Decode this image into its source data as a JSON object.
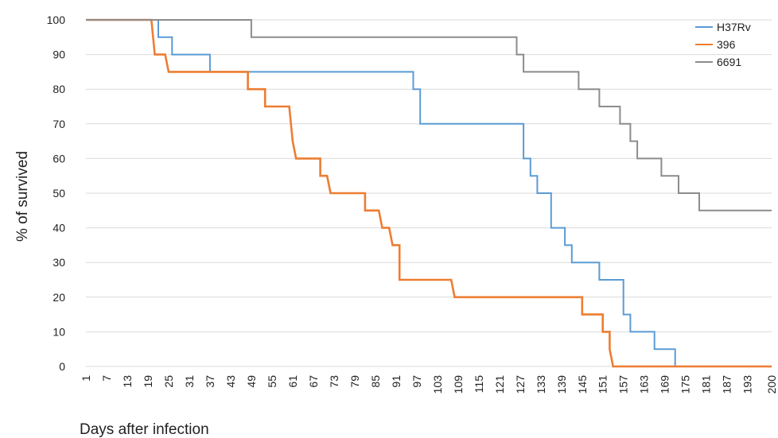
{
  "chart_data": {
    "type": "line",
    "xlabel": "Days after infection",
    "ylabel": "% of survived",
    "xlim": [
      1,
      200
    ],
    "ylim": [
      0,
      100
    ],
    "x_ticks": [
      1,
      7,
      13,
      19,
      25,
      31,
      37,
      43,
      49,
      55,
      61,
      67,
      73,
      79,
      85,
      91,
      97,
      103,
      109,
      115,
      121,
      127,
      133,
      139,
      145,
      151,
      157,
      163,
      169,
      175,
      181,
      187,
      193,
      200
    ],
    "y_ticks": [
      0,
      10,
      20,
      30,
      40,
      50,
      60,
      70,
      80,
      90,
      100
    ],
    "grid": "horizontal",
    "legend_position": "top-right",
    "series": [
      {
        "name": "H37Rv",
        "color": "#5b9bd5",
        "points": [
          [
            1,
            100
          ],
          [
            22,
            100
          ],
          [
            22,
            95
          ],
          [
            26,
            95
          ],
          [
            26,
            90
          ],
          [
            37,
            90
          ],
          [
            37,
            85
          ],
          [
            96,
            85
          ],
          [
            96,
            80
          ],
          [
            98,
            80
          ],
          [
            98,
            70
          ],
          [
            128,
            70
          ],
          [
            128,
            60
          ],
          [
            130,
            60
          ],
          [
            130,
            55
          ],
          [
            132,
            55
          ],
          [
            132,
            50
          ],
          [
            136,
            50
          ],
          [
            136,
            40
          ],
          [
            140,
            40
          ],
          [
            140,
            35
          ],
          [
            142,
            35
          ],
          [
            142,
            30
          ],
          [
            150,
            30
          ],
          [
            150,
            25
          ],
          [
            157,
            25
          ],
          [
            157,
            15
          ],
          [
            159,
            15
          ],
          [
            159,
            10
          ],
          [
            166,
            10
          ],
          [
            166,
            5
          ],
          [
            172,
            5
          ],
          [
            172,
            0
          ],
          [
            200,
            0
          ]
        ]
      },
      {
        "name": "396",
        "color": "#ed7d31",
        "points": [
          [
            1,
            100
          ],
          [
            20,
            100
          ],
          [
            21,
            90
          ],
          [
            24,
            90
          ],
          [
            25,
            85
          ],
          [
            48,
            85
          ],
          [
            48,
            80
          ],
          [
            53,
            80
          ],
          [
            53,
            75
          ],
          [
            60,
            75
          ],
          [
            61,
            65
          ],
          [
            62,
            60
          ],
          [
            69,
            60
          ],
          [
            69,
            55
          ],
          [
            71,
            55
          ],
          [
            72,
            50
          ],
          [
            82,
            50
          ],
          [
            82,
            45
          ],
          [
            86,
            45
          ],
          [
            87,
            40
          ],
          [
            89,
            40
          ],
          [
            90,
            35
          ],
          [
            92,
            35
          ],
          [
            92,
            25
          ],
          [
            107,
            25
          ],
          [
            108,
            20
          ],
          [
            145,
            20
          ],
          [
            145,
            15
          ],
          [
            151,
            15
          ],
          [
            151,
            10
          ],
          [
            153,
            10
          ],
          [
            153,
            5
          ],
          [
            154,
            0
          ],
          [
            200,
            0
          ]
        ]
      },
      {
        "name": "6691",
        "color": "#8c8c8c",
        "points": [
          [
            1,
            100
          ],
          [
            49,
            100
          ],
          [
            49,
            95
          ],
          [
            126,
            95
          ],
          [
            126,
            90
          ],
          [
            128,
            90
          ],
          [
            128,
            85
          ],
          [
            144,
            85
          ],
          [
            144,
            80
          ],
          [
            150,
            80
          ],
          [
            150,
            75
          ],
          [
            156,
            75
          ],
          [
            156,
            70
          ],
          [
            159,
            70
          ],
          [
            159,
            65
          ],
          [
            161,
            65
          ],
          [
            161,
            60
          ],
          [
            168,
            60
          ],
          [
            168,
            55
          ],
          [
            173,
            55
          ],
          [
            173,
            50
          ],
          [
            179,
            50
          ],
          [
            179,
            45
          ],
          [
            200,
            45
          ]
        ]
      }
    ]
  }
}
